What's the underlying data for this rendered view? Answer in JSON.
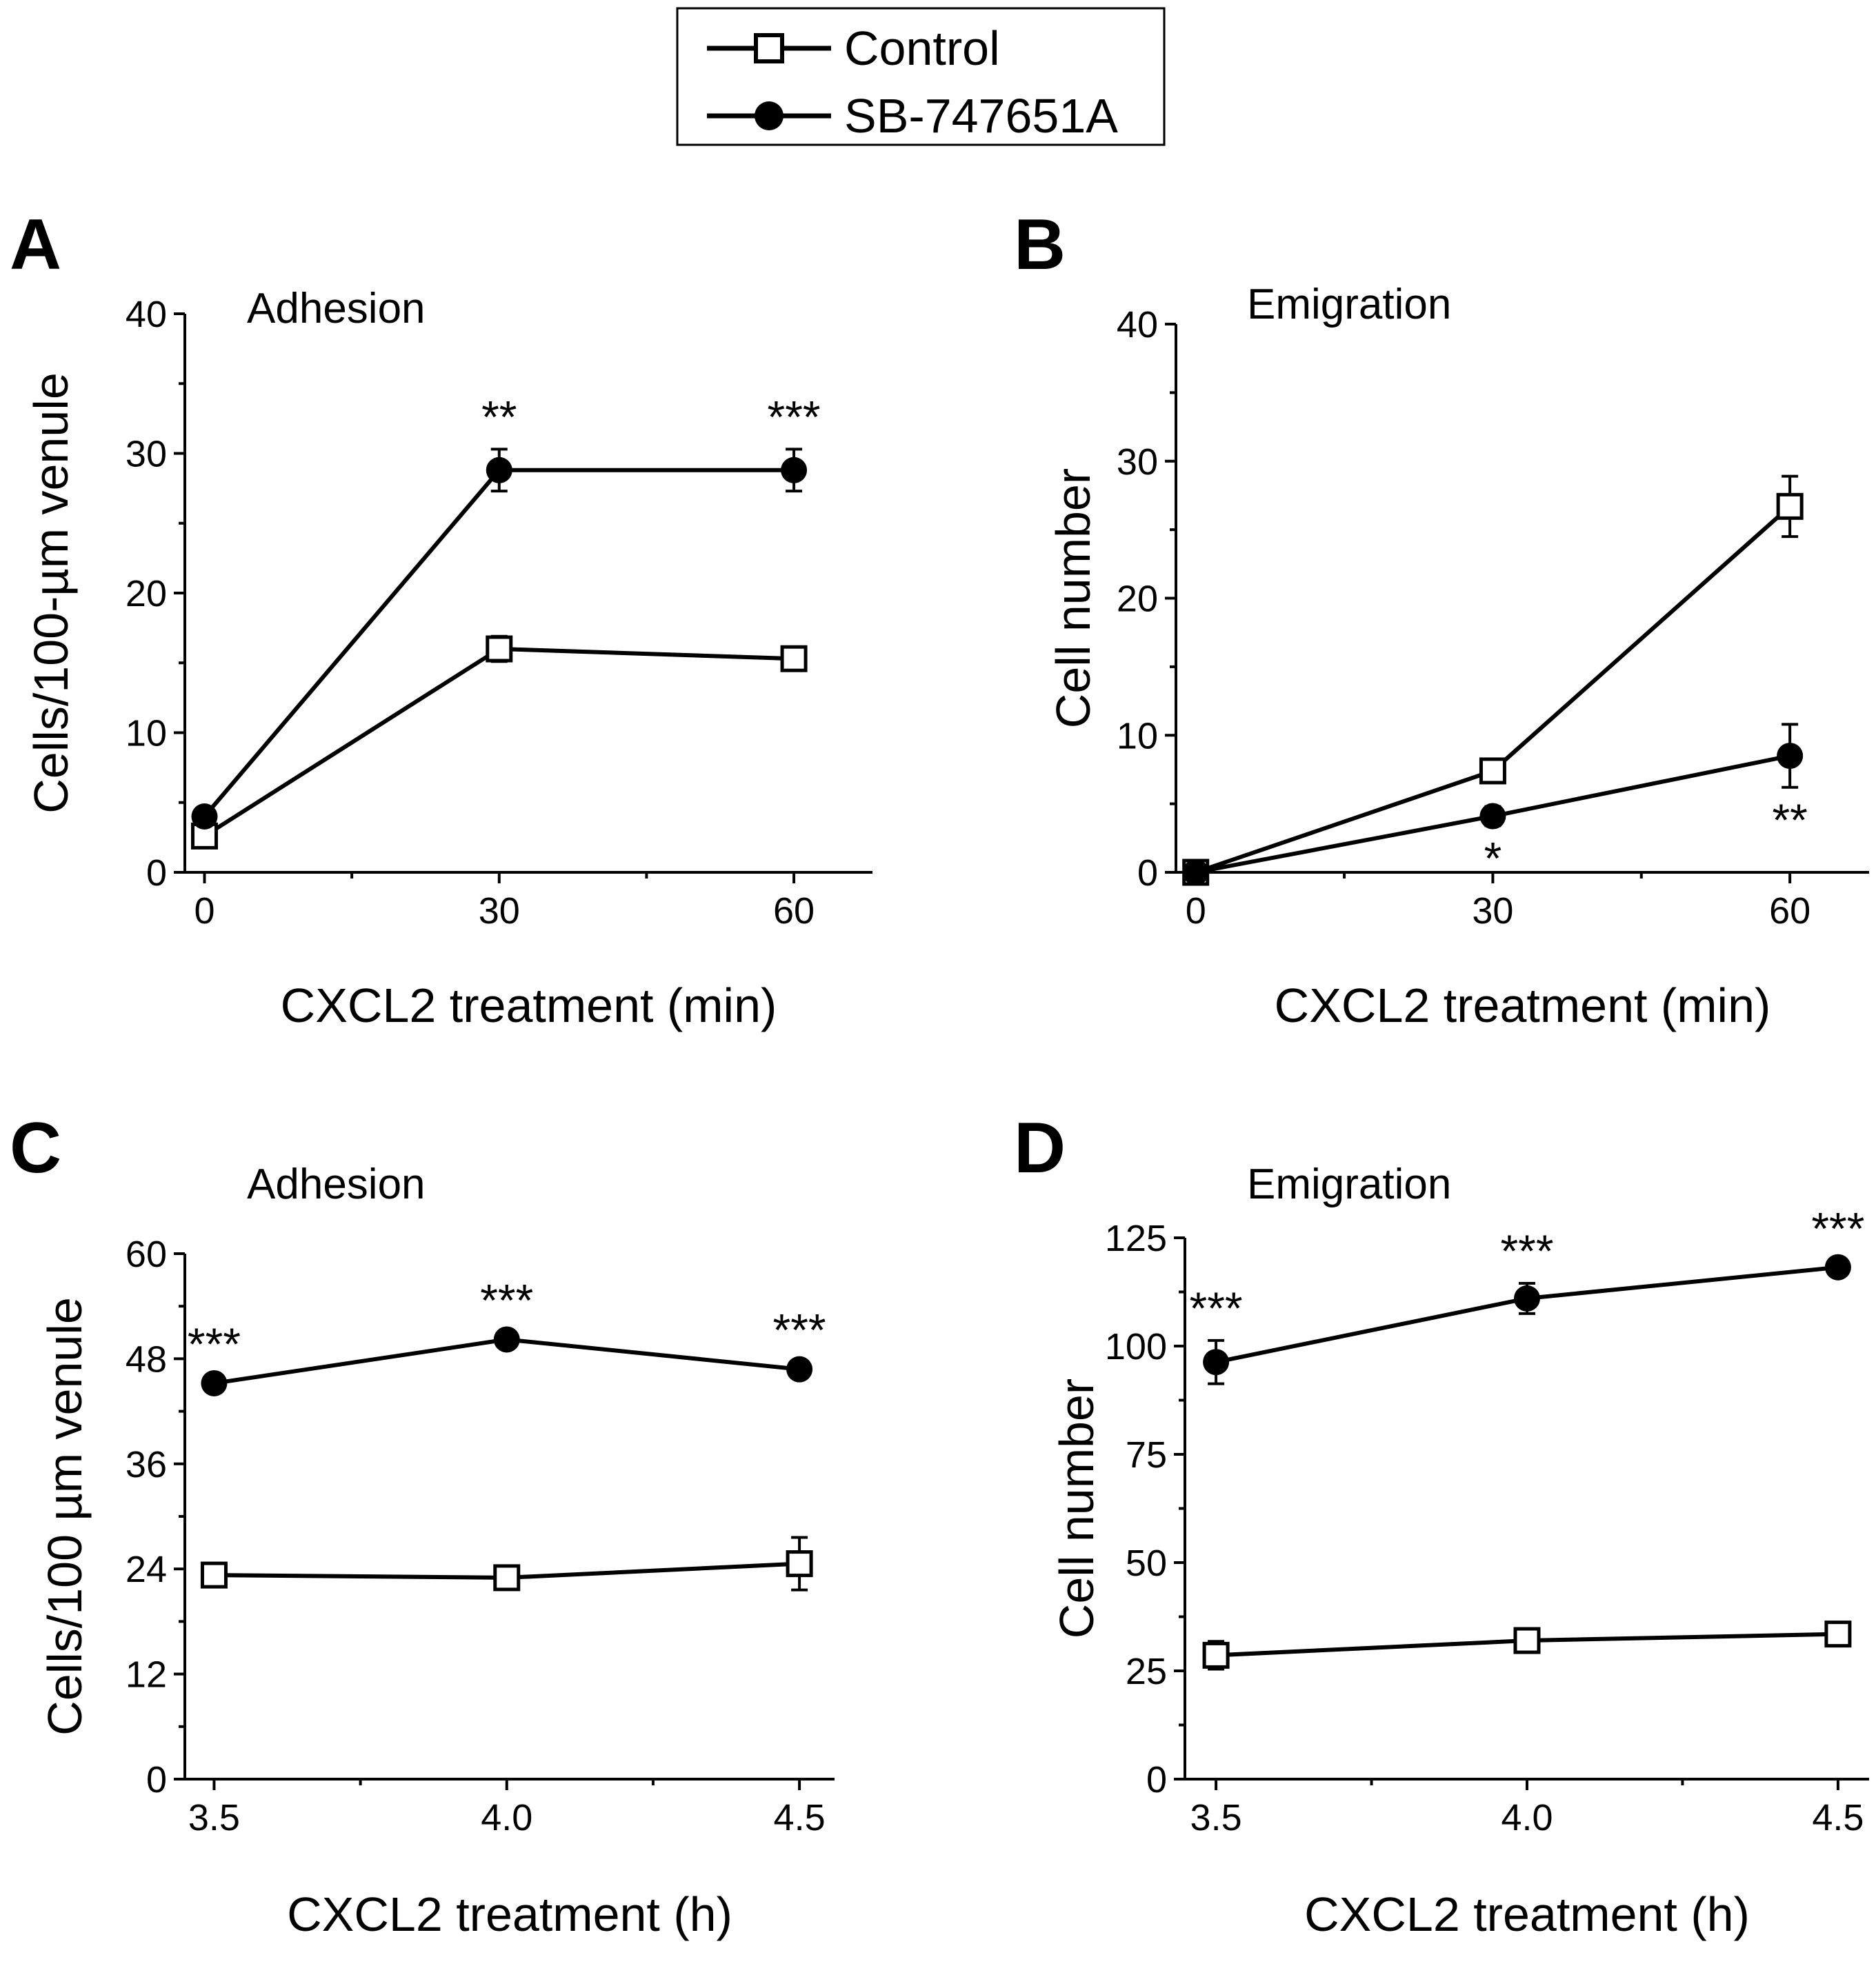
{
  "legend": {
    "entries": [
      {
        "label": "Control",
        "marker": "open-square",
        "color": "#000000"
      },
      {
        "label": "SB-747651A",
        "marker": "filled-circle",
        "color": "#000000"
      }
    ]
  },
  "chart_data": [
    {
      "panel": "A",
      "type": "line",
      "title": "Adhesion",
      "xlabel": "CXCL2 treatment (min)",
      "ylabel": "Cells/100-µm venule",
      "x": [
        0,
        30,
        60
      ],
      "xticks": [
        "0",
        "30",
        "60"
      ],
      "xlim": [
        -2,
        68
      ],
      "ylim": [
        0,
        40
      ],
      "yticks": [
        "0",
        "10",
        "20",
        "30",
        "40"
      ],
      "series": [
        {
          "name": "Control",
          "marker": "open-square",
          "values": [
            2.6,
            16.0,
            15.3
          ],
          "errors": [
            0.6,
            0.9,
            0.7
          ]
        },
        {
          "name": "SB-747651A",
          "marker": "filled-circle",
          "values": [
            4.0,
            28.8,
            28.8
          ],
          "errors": [
            0.5,
            1.5,
            1.5
          ]
        }
      ],
      "annotations": [
        {
          "x": 30,
          "text": "**",
          "position": "above"
        },
        {
          "x": 60,
          "text": "***",
          "position": "above"
        }
      ]
    },
    {
      "panel": "B",
      "type": "line",
      "title": "Emigration",
      "xlabel": "CXCL2 treatment (min)",
      "ylabel": "Cell number",
      "x": [
        0,
        30,
        60
      ],
      "xticks": [
        "0",
        "30",
        "60"
      ],
      "xlim": [
        -2,
        68
      ],
      "ylim": [
        0,
        40
      ],
      "yticks": [
        "0",
        "10",
        "20",
        "30",
        "40"
      ],
      "series": [
        {
          "name": "Control",
          "marker": "open-square",
          "values": [
            0,
            7.4,
            26.7
          ],
          "errors": [
            0.2,
            0.5,
            2.2
          ]
        },
        {
          "name": "SB-747651A",
          "marker": "filled-circle",
          "values": [
            0,
            4.1,
            8.5
          ],
          "errors": [
            0.2,
            0.7,
            2.3
          ]
        }
      ],
      "annotations": [
        {
          "x": 30,
          "text": "*",
          "position": "below"
        },
        {
          "x": 60,
          "text": "**",
          "position": "below"
        }
      ]
    },
    {
      "panel": "C",
      "type": "line",
      "title": "Adhesion",
      "xlabel": "CXCL2 treatment (h)",
      "ylabel": "Cells/100 µm venule",
      "x": [
        3.5,
        4.0,
        4.5
      ],
      "xticks": [
        "3.5",
        "4.0",
        "4.5"
      ],
      "xlim": [
        3.45,
        4.56
      ],
      "ylim": [
        0,
        60
      ],
      "yticks": [
        "0",
        "12",
        "24",
        "36",
        "48",
        "60"
      ],
      "series": [
        {
          "name": "Control",
          "marker": "open-square",
          "values": [
            23.3,
            23.0,
            24.6
          ],
          "errors": [
            1.2,
            0.8,
            3.0
          ]
        },
        {
          "name": "SB-747651A",
          "marker": "filled-circle",
          "values": [
            45.2,
            50.2,
            46.8
          ],
          "errors": [
            0.8,
            0.8,
            0.8
          ]
        }
      ],
      "annotations": [
        {
          "x": 3.5,
          "text": "***",
          "position": "above"
        },
        {
          "x": 4.0,
          "text": "***",
          "position": "above"
        },
        {
          "x": 4.5,
          "text": "***",
          "position": "above"
        }
      ]
    },
    {
      "panel": "D",
      "type": "line",
      "title": "Emigration",
      "xlabel": "CXCL2 treatment (h)",
      "ylabel": "Cell number",
      "x": [
        3.5,
        4.0,
        4.5
      ],
      "xticks": [
        "3.5",
        "4.0",
        "4.5"
      ],
      "xlim": [
        3.45,
        4.55
      ],
      "ylim": [
        0,
        125
      ],
      "yticks": [
        "0",
        "25",
        "50",
        "75",
        "100",
        "125"
      ],
      "series": [
        {
          "name": "Control",
          "marker": "open-square",
          "values": [
            28.6,
            32.0,
            33.5
          ],
          "errors": [
            3.2,
            1.5,
            1.0
          ]
        },
        {
          "name": "SB-747651A",
          "marker": "filled-circle",
          "values": [
            96.3,
            111.0,
            118.2
          ],
          "errors": [
            5.0,
            3.5,
            1.5
          ]
        }
      ],
      "annotations": [
        {
          "x": 3.5,
          "text": "***",
          "position": "above"
        },
        {
          "x": 4.0,
          "text": "***",
          "position": "above"
        },
        {
          "x": 4.5,
          "text": "***",
          "position": "above"
        }
      ]
    }
  ]
}
